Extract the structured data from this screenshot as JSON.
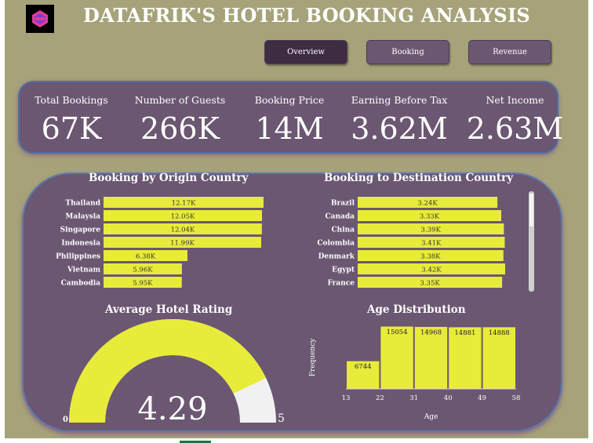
{
  "header": {
    "title": "DATAFRIK'S HOTEL BOOKING ANALYSIS",
    "logo_icon": "datafrik-hexagon-logo",
    "colors": {
      "background": "#a6a37a",
      "panel": "#6b5771",
      "accent": "#e8eb3a",
      "logo_pink": "#e43a9a",
      "logo_purple": "#7a3fd0"
    }
  },
  "nav": {
    "overview": "Overview",
    "booking": "Booking",
    "revenue": "Revenue",
    "active": "Overview"
  },
  "kpis": [
    {
      "label": "Total Bookings",
      "value": "67K"
    },
    {
      "label": "Number of Guests",
      "value": "266K"
    },
    {
      "label": "Booking Price",
      "value": "14M"
    },
    {
      "label": "Earning Before Tax",
      "value": "3.62M"
    },
    {
      "label": "Net Income",
      "value": "2.63M"
    }
  ],
  "chart_data": [
    {
      "type": "bar",
      "orientation": "horizontal",
      "title": "Booking by Origin Country",
      "categories": [
        "Thailand",
        "Malaysia",
        "Singapore",
        "Indonesia",
        "Philippines",
        "Vietnam",
        "Cambodia"
      ],
      "values": [
        12170,
        12050,
        12040,
        11990,
        6380,
        5960,
        5950
      ],
      "data_labels": [
        "12.17K",
        "12.05K",
        "12.04K",
        "11.99K",
        "6.38K",
        "5.96K",
        "5.95K"
      ],
      "color": "#e8eb3a",
      "xlim": [
        0,
        12170
      ]
    },
    {
      "type": "bar",
      "orientation": "horizontal",
      "title": "Booking to Destination Country",
      "categories": [
        "Brazil",
        "Canada",
        "China",
        "Colombia",
        "Denmark",
        "Egypt",
        "France"
      ],
      "values": [
        3240,
        3330,
        3390,
        3410,
        3380,
        3420,
        3350
      ],
      "data_labels": [
        "3.24K",
        "3.33K",
        "3.39K",
        "3.41K",
        "3.38K",
        "3.42K",
        "3.35K"
      ],
      "color": "#e8eb3a",
      "xlim": [
        0,
        3420
      ]
    },
    {
      "type": "gauge",
      "title": "Average Hotel Rating",
      "value": 4.29,
      "value_label": "4.29",
      "min": 0,
      "max": 5,
      "min_label": "0",
      "max_label": "5",
      "fill_color": "#e8eb3a",
      "track_color": "#f1f1f1"
    },
    {
      "type": "histogram",
      "title": "Age Distribution",
      "xlabel": "Age",
      "ylabel": "Frequency",
      "bins": [
        13,
        22,
        31,
        40,
        49,
        58
      ],
      "values": [
        6744,
        15054,
        14968,
        14881,
        14888
      ],
      "data_labels": [
        "6744",
        "15054",
        "14968",
        "14881",
        "14888"
      ],
      "tick_labels": [
        "13",
        "22",
        "31",
        "40",
        "49",
        "58"
      ],
      "color": "#e8eb3a",
      "ylim": [
        0,
        15054
      ]
    }
  ]
}
